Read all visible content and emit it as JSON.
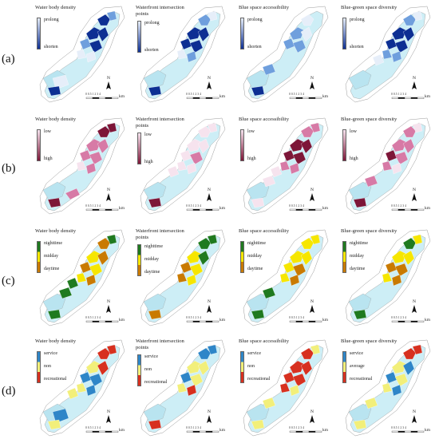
{
  "row_labels": [
    "(a)",
    "(b)",
    "(c)",
    "(d)"
  ],
  "north_label": "N",
  "scale": {
    "ticks": "0 0.5 1    2    3    4",
    "unit": "km"
  },
  "rows": [
    {
      "label": "(a)",
      "palette": {
        "low": "#e6eef9",
        "mid": "#6f9fdd",
        "high": "#0d2f93"
      },
      "panels": [
        {
          "title": "Water body density",
          "legend": [
            "prolong",
            "shorten"
          ]
        },
        {
          "title": "Waterfront intersection points",
          "legend": [
            "prolong",
            "shorten"
          ]
        },
        {
          "title": "Blue space accessibility",
          "legend": [
            "prolong",
            "shorten"
          ]
        },
        {
          "title": "Blue-green space diversity",
          "legend": [
            "prolong",
            "shorten"
          ]
        }
      ]
    },
    {
      "label": "(b)",
      "palette": {
        "low": "#f6e3ee",
        "mid": "#d77aa6",
        "high": "#7d1638"
      },
      "panels": [
        {
          "title": "Water body density",
          "legend": [
            "low",
            "high"
          ]
        },
        {
          "title": "Waterfront intersection points",
          "legend": [
            "low",
            "high"
          ]
        },
        {
          "title": "Blue space accessibility",
          "legend": [
            "low",
            "high"
          ]
        },
        {
          "title": "Blue-green space diversity",
          "legend": [
            "low",
            "high"
          ]
        }
      ]
    },
    {
      "label": "(c)",
      "palette": {
        "low": "#1f7a1f",
        "mid": "#f6e600",
        "high": "#c97a00"
      },
      "panels": [
        {
          "title": "Water body density",
          "legend": [
            "nighttime",
            "midday",
            "daytime"
          ]
        },
        {
          "title": "Waterfront intersection points",
          "legend": [
            "nighttime",
            "midday",
            "daytime"
          ]
        },
        {
          "title": "Blue space accessibility",
          "legend": [
            "nighttime",
            "midday",
            "daytime"
          ]
        },
        {
          "title": "Blue-green space diversity",
          "legend": [
            "nighttime",
            "midday",
            "daytime"
          ]
        }
      ]
    },
    {
      "label": "(d)",
      "palette": {
        "low": "#2e86c8",
        "mid": "#f2ef7a",
        "high": "#d7301f"
      },
      "panels": [
        {
          "title": "Water body density",
          "legend": [
            "service",
            "non",
            "recreational"
          ]
        },
        {
          "title": "Waterfront intersection points",
          "legend": [
            "service",
            "non",
            "recreational"
          ]
        },
        {
          "title": "Blue space accessibility",
          "legend": [
            "service",
            "non",
            "recreational"
          ]
        },
        {
          "title": "Blue-green space diversity",
          "legend": [
            "service",
            "average",
            "recreational"
          ]
        }
      ]
    }
  ],
  "colors": {
    "base_fill": "#cdeef6",
    "outline": "#9a9a9a",
    "water": "#b9e4f0"
  }
}
